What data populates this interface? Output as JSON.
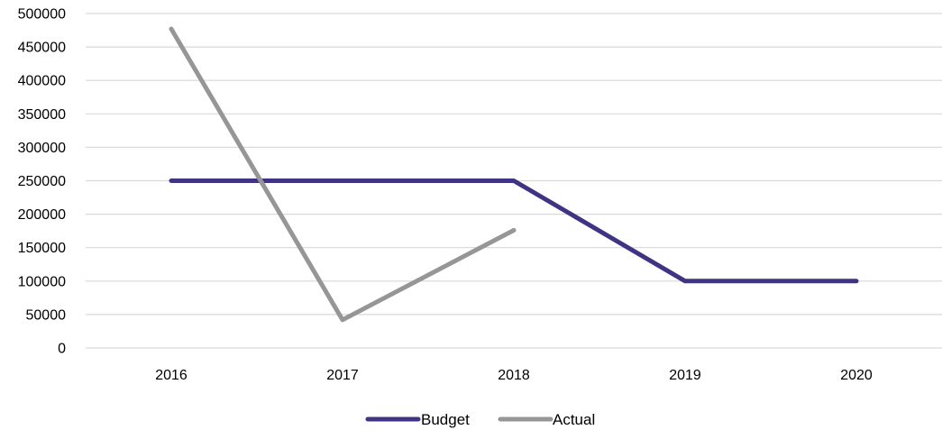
{
  "chart_data": {
    "type": "line",
    "title": "",
    "xlabel": "",
    "ylabel": "",
    "categories": [
      "2016",
      "2017",
      "2018",
      "2019",
      "2020"
    ],
    "ylim": [
      0,
      500000
    ],
    "yticks": [
      0,
      50000,
      100000,
      150000,
      200000,
      250000,
      300000,
      350000,
      400000,
      450000,
      500000
    ],
    "grid": true,
    "legend_position": "bottom",
    "series": [
      {
        "name": "Budget",
        "color": "#3f3483",
        "values": [
          250000,
          250000,
          250000,
          100000,
          100000
        ]
      },
      {
        "name": "Actual",
        "color": "#969696",
        "values": [
          477000,
          42000,
          176000,
          null,
          null
        ]
      }
    ]
  }
}
